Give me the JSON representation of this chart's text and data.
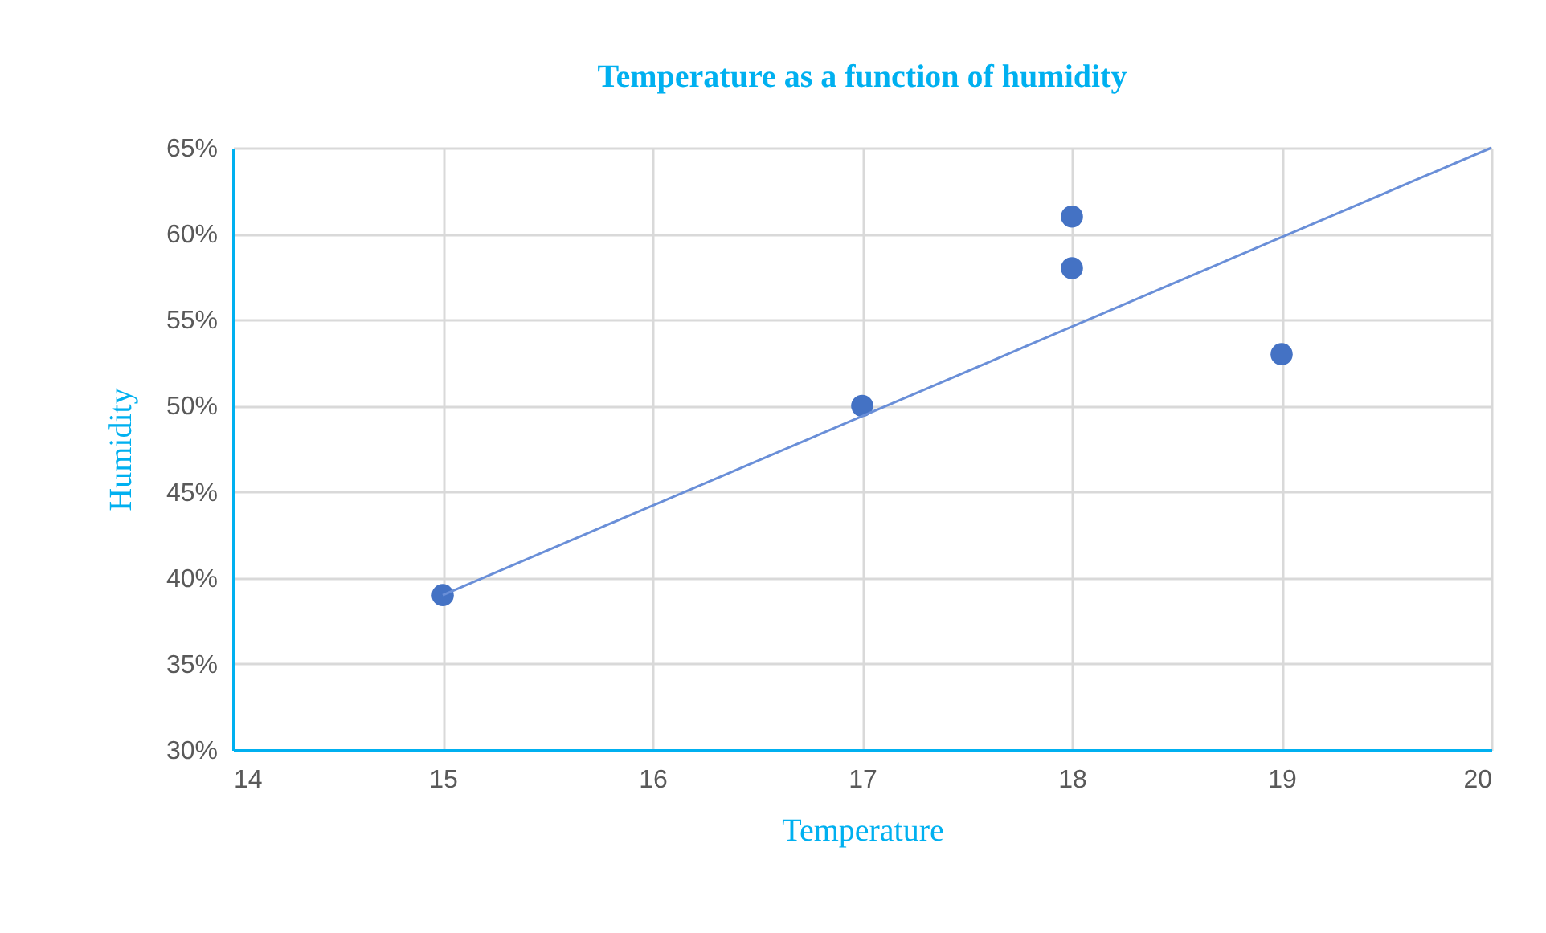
{
  "chart_data": {
    "type": "scatter",
    "title": "Temperature as a function of humidity",
    "xlabel": "Temperature",
    "ylabel": "Humidity",
    "xlim": [
      14,
      20
    ],
    "xticks": [
      14,
      15,
      16,
      17,
      18,
      19,
      20
    ],
    "ylim": [
      30,
      65
    ],
    "yticks": [
      {
        "value": 30,
        "label": "30%"
      },
      {
        "value": 35,
        "label": "35%"
      },
      {
        "value": 40,
        "label": "40%"
      },
      {
        "value": 45,
        "label": "45%"
      },
      {
        "value": 50,
        "label": "50%"
      },
      {
        "value": 55,
        "label": "55%"
      },
      {
        "value": 60,
        "label": "60%"
      },
      {
        "value": 65,
        "label": "65%"
      }
    ],
    "grid": true,
    "series": [
      {
        "color": "#4472c4",
        "x": [
          15,
          17,
          18,
          18,
          19
        ],
        "values": [
          39,
          50,
          61,
          58,
          53
        ],
        "marker": "circle"
      },
      {
        "type": "line",
        "color": "#6a8fd8",
        "x": [
          15,
          20
        ],
        "values": [
          39,
          65
        ],
        "line_style": "solid",
        "marker": "none"
      }
    ]
  }
}
